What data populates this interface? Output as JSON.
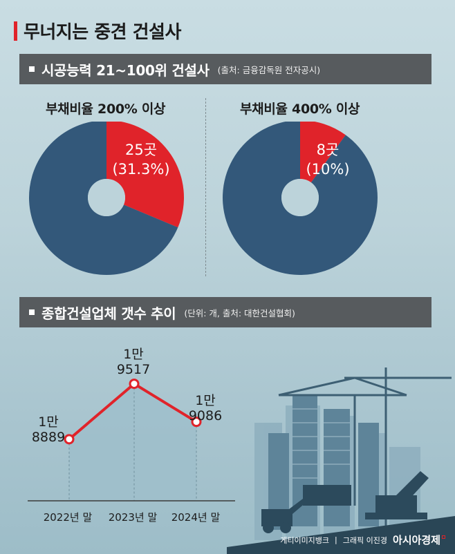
{
  "title": "무너지는 중견 건설사",
  "section1": {
    "title": "시공능력 21~100위 건설사",
    "note": "(출처: 금융감독원 전자공시)"
  },
  "section2": {
    "title": "종합건설업체 갯수 추이",
    "note": "(단위: 개, 출처: 대한건설협회)"
  },
  "chart_data": [
    {
      "type": "pie",
      "title": "부채비율 200% 이상",
      "slices": [
        {
          "label_line1": "25곳",
          "label_line2": "(31.3%)",
          "value": 31.3,
          "color": "#e0232a"
        },
        {
          "value": 68.7,
          "color": "#33587a"
        }
      ]
    },
    {
      "type": "pie",
      "title": "부채비율 400% 이상",
      "slices": [
        {
          "label_line1": "8곳",
          "label_line2": "(10%)",
          "value": 10,
          "color": "#e0232a"
        },
        {
          "value": 90,
          "color": "#33587a"
        }
      ]
    },
    {
      "type": "area",
      "categories": [
        "2022년 말",
        "2023년 말",
        "2024년 말"
      ],
      "values": [
        18889,
        19517,
        19086
      ],
      "labels": [
        {
          "line1": "1만",
          "line2": "8889"
        },
        {
          "line1": "1만",
          "line2": "9517"
        },
        {
          "line1": "1만",
          "line2": "9086"
        }
      ],
      "line_color": "#e0232a",
      "fill_color": "#9fbfcb"
    }
  ],
  "footer": {
    "source": "게티이미지뱅크",
    "graphic": "그래픽 이진경",
    "brand": "아시아경제"
  },
  "colors": {
    "accent": "#e0232a",
    "navy": "#33587a",
    "header_bg": "#575b5e"
  }
}
